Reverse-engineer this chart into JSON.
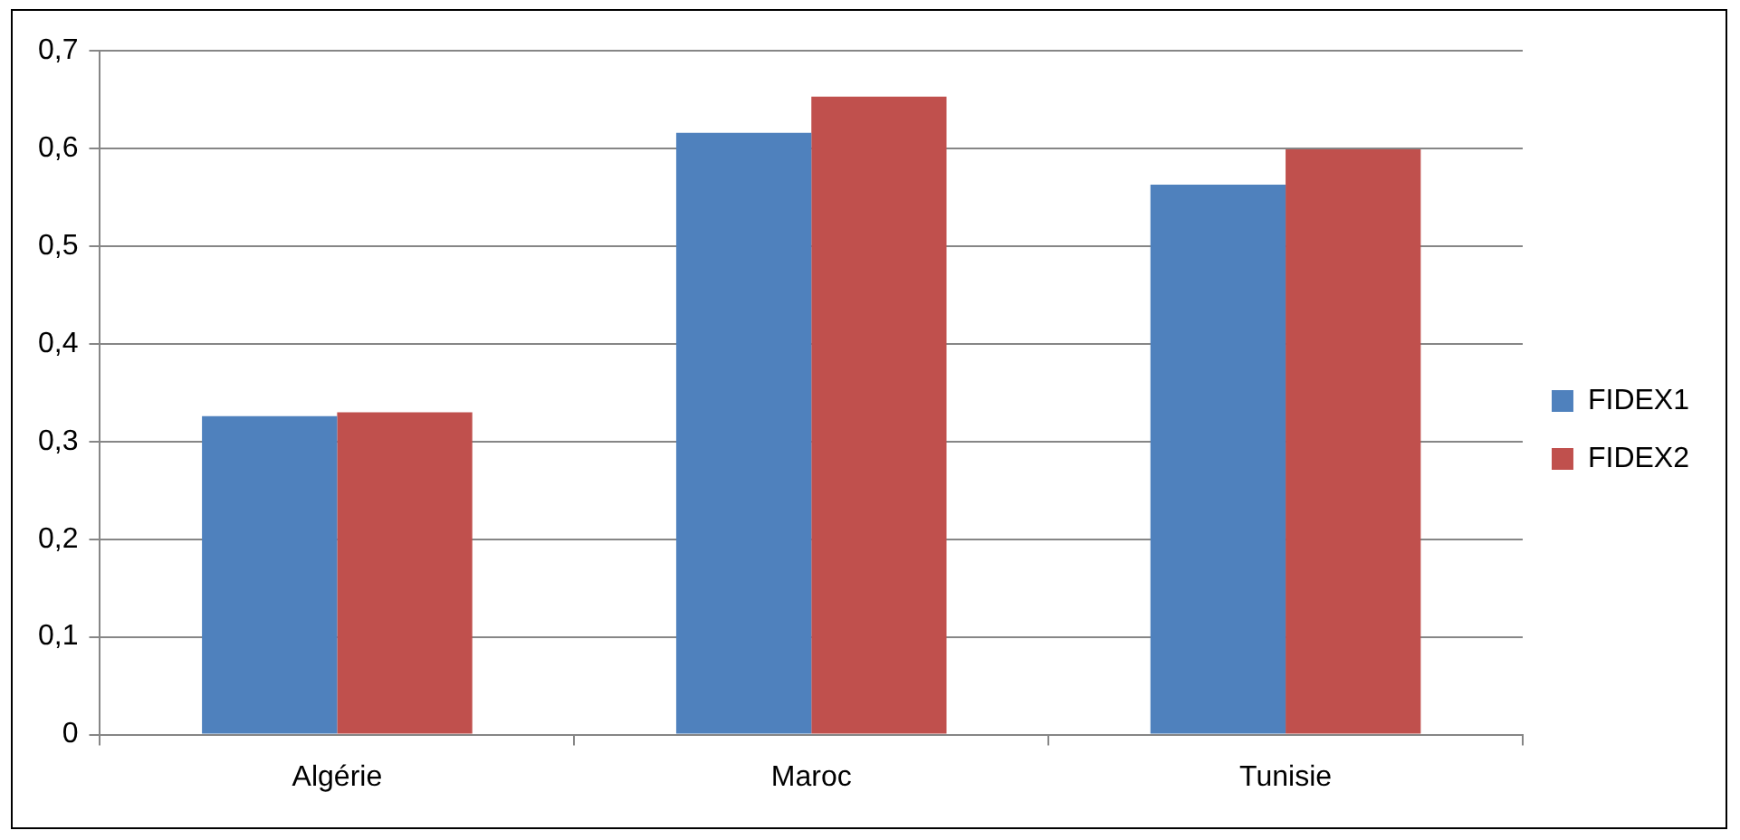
{
  "chart_data": {
    "type": "bar",
    "categories": [
      "Algérie",
      "Maroc",
      "Tunisie"
    ],
    "series": [
      {
        "name": "FIDEX1",
        "color": "#4f81bd",
        "values": [
          0.326,
          0.616,
          0.563
        ]
      },
      {
        "name": "FIDEX2",
        "color": "#c0504d",
        "values": [
          0.33,
          0.653,
          0.599
        ]
      }
    ],
    "ylim": [
      0,
      0.7
    ],
    "yticks": [
      {
        "value": 0,
        "label": "0"
      },
      {
        "value": 0.1,
        "label": "0,1"
      },
      {
        "value": 0.2,
        "label": "0,2"
      },
      {
        "value": 0.3,
        "label": "0,3"
      },
      {
        "value": 0.4,
        "label": "0,4"
      },
      {
        "value": 0.5,
        "label": "0,5"
      },
      {
        "value": 0.6,
        "label": "0,6"
      },
      {
        "value": 0.7,
        "label": "0,7"
      }
    ],
    "grid": "y",
    "legend": "right"
  }
}
